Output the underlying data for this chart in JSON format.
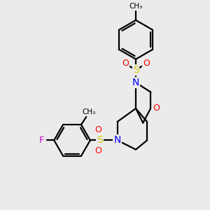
{
  "bg_color": "#ebebeb",
  "line_color": "#000000",
  "bond_lw": 1.6,
  "atom_colors": {
    "S": "#cccc00",
    "N": "#0000ff",
    "O": "#ff0000",
    "F": "#cc00cc",
    "C": "#000000"
  },
  "figsize": [
    3.0,
    3.0
  ],
  "dpi": 100,
  "xlim": [
    0.0,
    10.0
  ],
  "ylim": [
    0.0,
    10.0
  ]
}
